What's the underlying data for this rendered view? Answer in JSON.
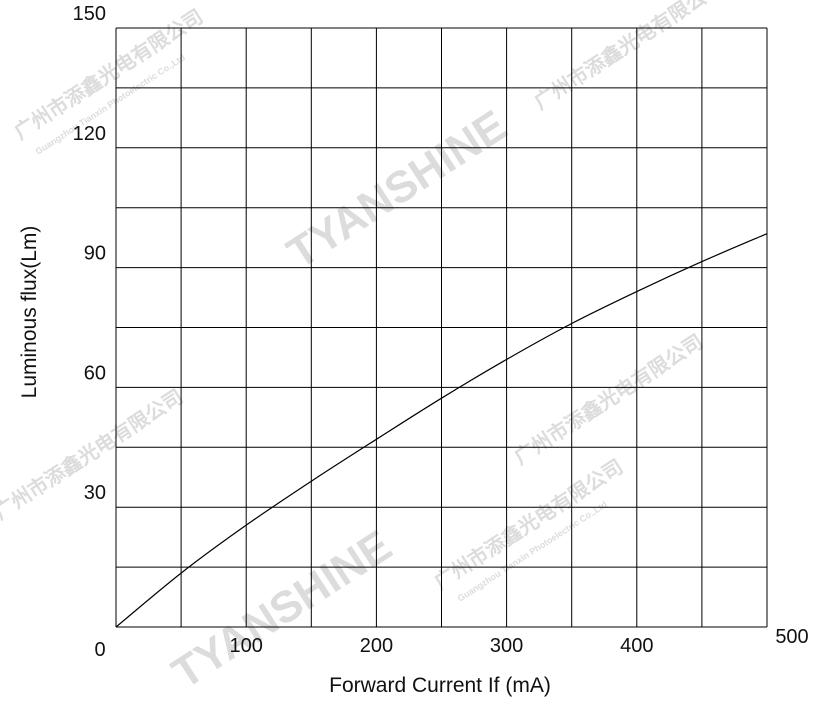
{
  "watermark": {
    "brand": "TYANSHINE",
    "company_cn": "广州市添鑫光电有限公司",
    "company_en": "Guangzhou Tianxin Photoelectric Co.,Ltd"
  },
  "chart_data": {
    "type": "line",
    "title": "",
    "xlabel": "Forward Current  If (mA)",
    "ylabel": "Luminous flux(Lm)",
    "xlim": [
      0,
      500
    ],
    "ylim": [
      0,
      150
    ],
    "x_ticks": [
      "0",
      "100",
      "200",
      "300",
      "400",
      "500"
    ],
    "y_ticks": [
      "30",
      "60",
      "90",
      "120",
      "150"
    ],
    "x_grid_step": 50,
    "y_grid_step": 15,
    "grid": true,
    "series": [
      {
        "x": [
          0,
          50,
          100,
          150,
          200,
          250,
          300,
          350,
          400,
          450,
          500
        ],
        "y": [
          0,
          13.5,
          25.5,
          36.5,
          47,
          57.3,
          67,
          76,
          84,
          91.5,
          98.5
        ]
      }
    ],
    "colors": {
      "line": "#000000",
      "grid": "#000000",
      "watermark": "#dcdcdc"
    }
  }
}
